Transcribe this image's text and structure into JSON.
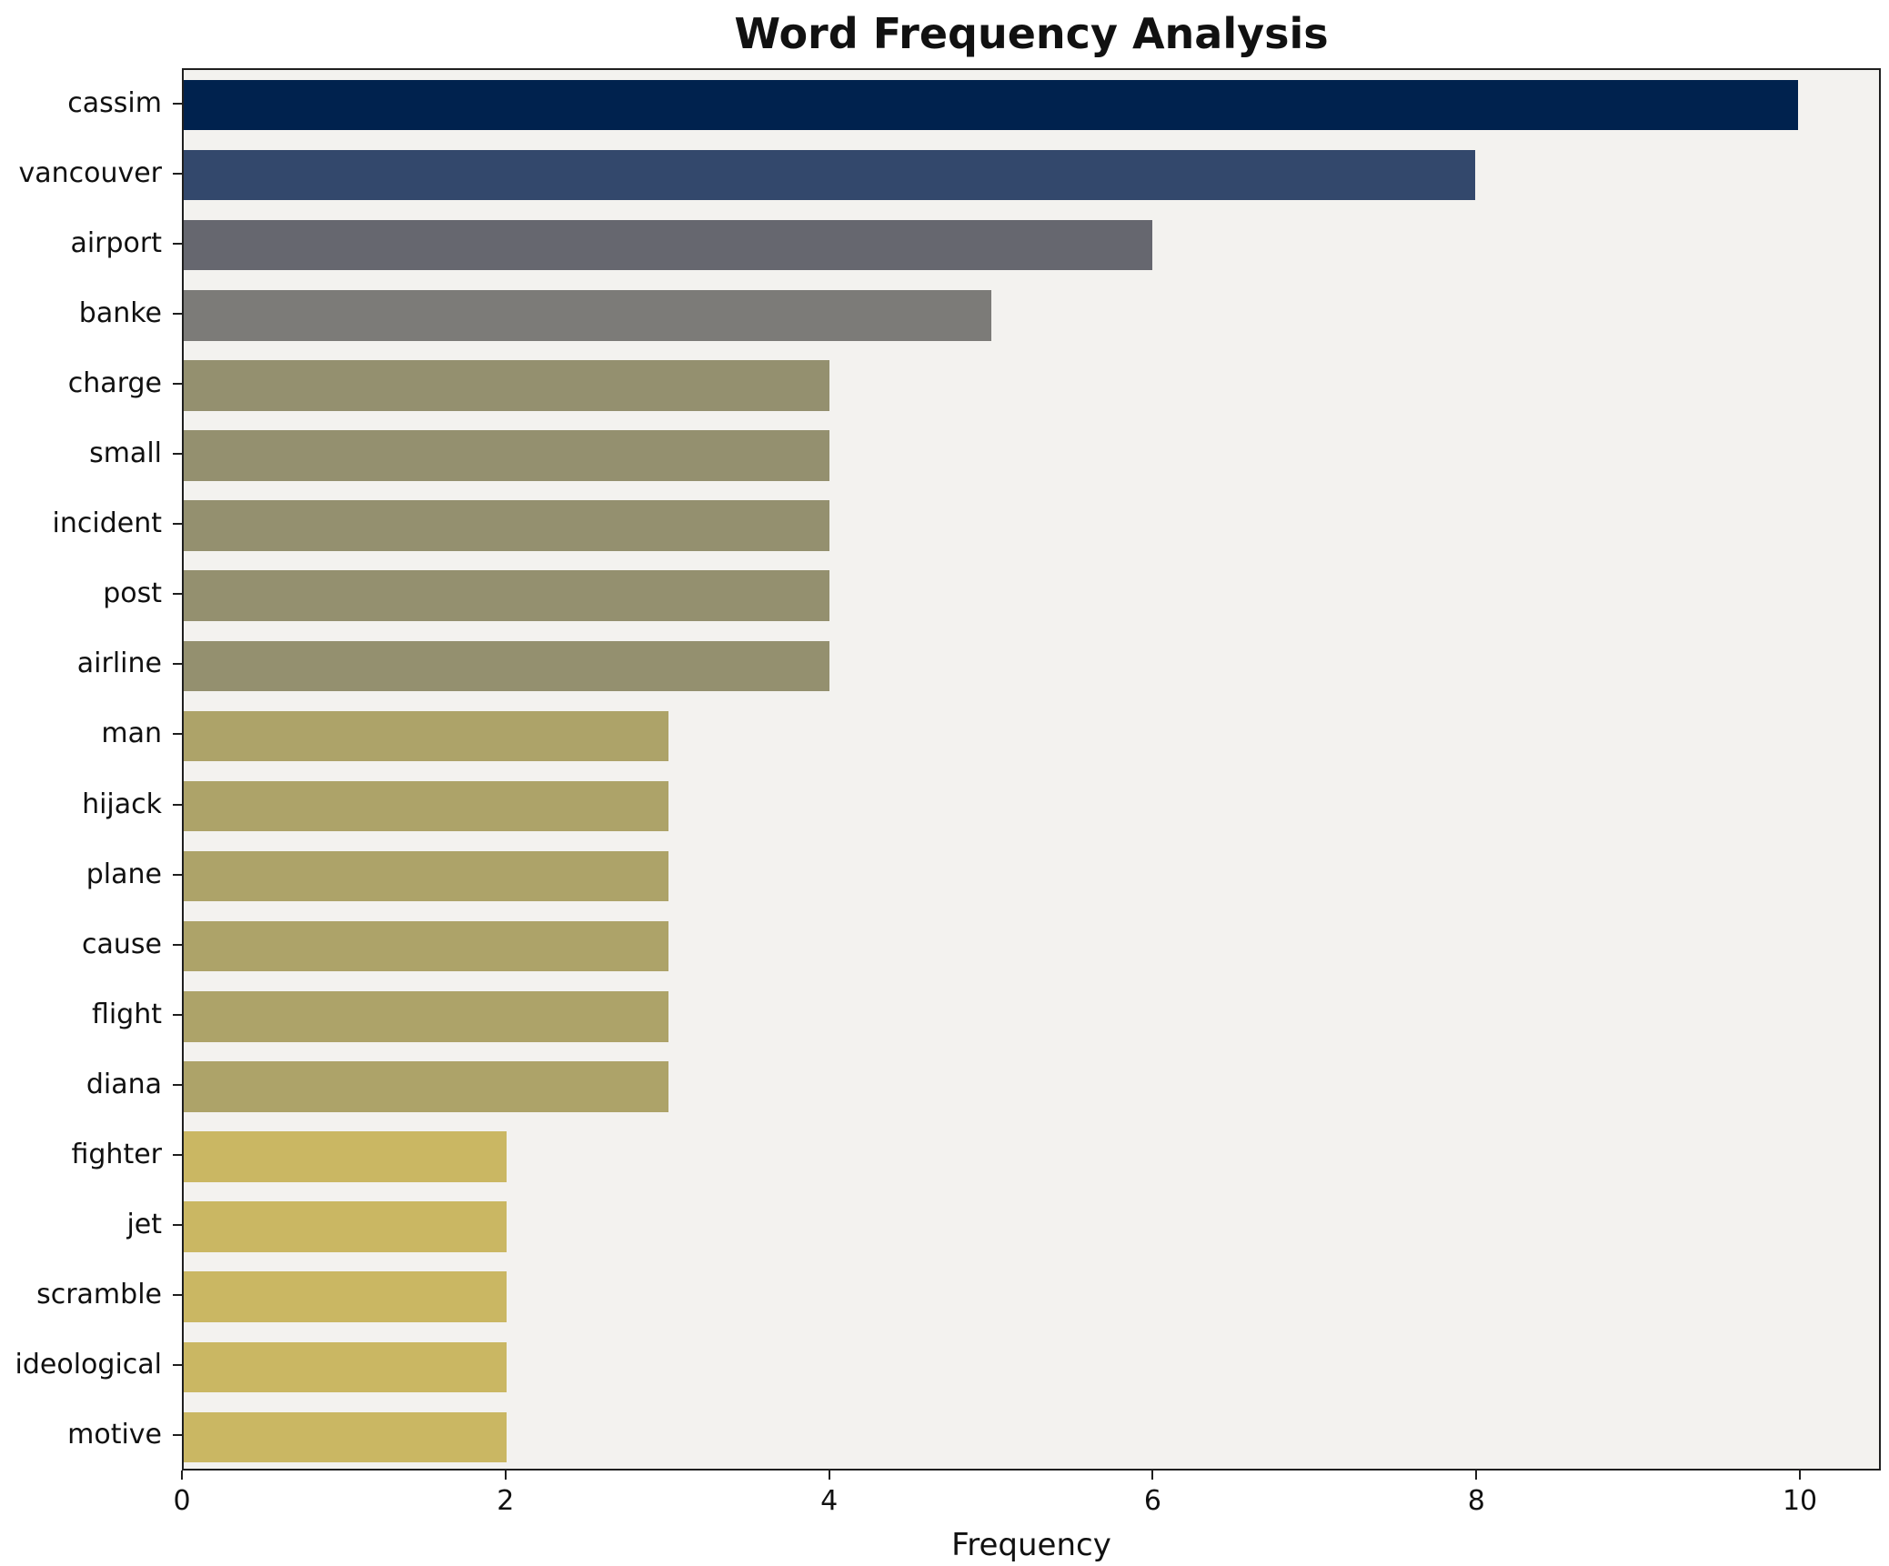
{
  "chart_data": {
    "type": "bar",
    "orientation": "horizontal",
    "title": "Word Frequency Analysis",
    "xlabel": "Frequency",
    "ylabel": "",
    "xlim": [
      0,
      10.5
    ],
    "xticks": [
      0,
      2,
      4,
      6,
      8,
      10
    ],
    "grid": false,
    "legend": "none",
    "categories": [
      "cassim",
      "vancouver",
      "airport",
      "banke",
      "charge",
      "small",
      "incident",
      "post",
      "airline",
      "man",
      "hijack",
      "plane",
      "cause",
      "flight",
      "diana",
      "fighter",
      "jet",
      "scramble",
      "ideological",
      "motive"
    ],
    "values": [
      10,
      8,
      6,
      5,
      4,
      4,
      4,
      4,
      4,
      3,
      3,
      3,
      3,
      3,
      3,
      2,
      2,
      2,
      2,
      2
    ],
    "bar_colors": [
      "#00224E",
      "#33486C",
      "#66676F",
      "#7C7B78",
      "#94906F",
      "#94906F",
      "#94906F",
      "#94906F",
      "#94906F",
      "#ADA369",
      "#ADA369",
      "#ADA369",
      "#ADA369",
      "#ADA369",
      "#ADA369",
      "#CAB763",
      "#CAB763",
      "#CAB763",
      "#CAB763",
      "#CAB763"
    ],
    "plot_bg": "#f3f2ef",
    "axis_color": "#1f1f1f"
  }
}
